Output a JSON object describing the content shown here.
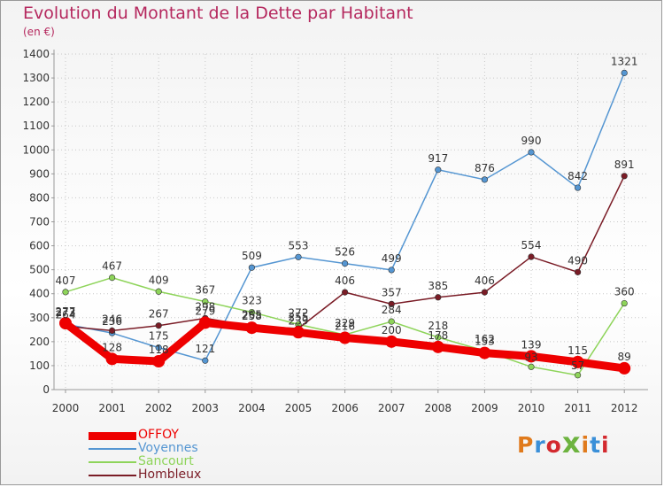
{
  "title": "Evolution du Montant de la Dette par Habitant",
  "subtitle": "(en €)",
  "logo": "Proxiti",
  "logo_colors": [
    "#e07a1c",
    "#3a8fd8",
    "#d3292e",
    "#6db33f",
    "#e07a1c",
    "#3a8fd8",
    "#d3292e"
  ],
  "chart_data": {
    "type": "line",
    "x": [
      "2000",
      "2001",
      "2002",
      "2003",
      "2004",
      "2005",
      "2006",
      "2007",
      "2008",
      "2009",
      "2010",
      "2011",
      "2012"
    ],
    "yticks": [
      "0",
      "100",
      "200",
      "300",
      "400",
      "500",
      "600",
      "700",
      "800",
      "900",
      "1000",
      "1100",
      "1200",
      "1300",
      "1400"
    ],
    "ylim": [
      0,
      1400
    ],
    "grid": true,
    "legend_position": "bottom-left",
    "series": [
      {
        "name": "OFFOY",
        "color": "#ee0000",
        "thick": true,
        "values": [
          277,
          128,
          118,
          279,
          258,
          239,
          216,
          200,
          178,
          153,
          139,
          115,
          89
        ],
        "labels": [
          "277",
          "128",
          "118",
          "279",
          "258",
          "239",
          "216",
          "200",
          "178",
          "153",
          "139",
          "115",
          "89"
        ]
      },
      {
        "name": "Voyennes",
        "color": "#5596d2",
        "values": [
          273,
          236,
          175,
          121,
          509,
          553,
          526,
          499,
          917,
          876,
          990,
          842,
          1321
        ],
        "labels": [
          "273",
          "236",
          "175",
          "121",
          "509",
          "553",
          "526",
          "499",
          "917",
          "876",
          "990",
          "842",
          "1321"
        ]
      },
      {
        "name": "Sancourt",
        "color": "#8ed45a",
        "values": [
          407,
          467,
          409,
          367,
          323,
          272,
          229,
          284,
          218,
          162,
          95,
          60,
          360
        ],
        "labels": [
          "407",
          "467",
          "409",
          "367",
          "323",
          "272",
          "229",
          "284",
          "218",
          "162",
          "",
          "",
          "360"
        ]
      },
      {
        "name": "Hombleux",
        "color": "#7a1c26",
        "values": [
          264,
          246,
          267,
          298,
          265,
          255,
          406,
          357,
          385,
          406,
          554,
          490,
          891
        ],
        "labels": [
          "264",
          "246",
          "267",
          "298",
          "265",
          "255",
          "406",
          "357",
          "385",
          "406",
          "554",
          "490",
          "891"
        ]
      }
    ],
    "overlap_labels": [
      "93",
      "57"
    ]
  }
}
